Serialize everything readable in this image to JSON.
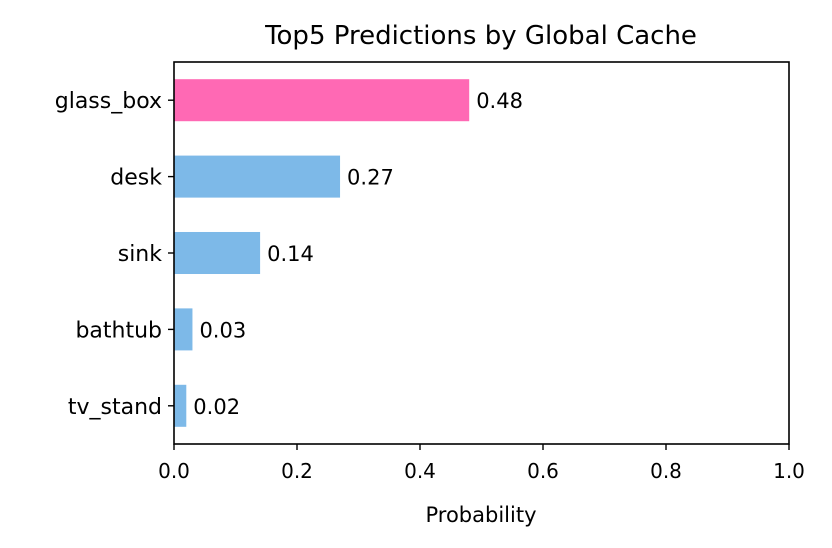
{
  "chart_data": {
    "type": "bar",
    "orientation": "horizontal",
    "title": "Top5 Predictions by Global Cache",
    "xlabel": "Probability",
    "ylabel": "",
    "categories": [
      "glass_box",
      "desk",
      "sink",
      "bathtub",
      "tv_stand"
    ],
    "values": [
      0.48,
      0.27,
      0.14,
      0.03,
      0.02
    ],
    "value_labels": [
      "0.48",
      "0.27",
      "0.14",
      "0.03",
      "0.02"
    ],
    "xlim": [
      0,
      1.0
    ],
    "xticks": [
      0,
      0.2,
      0.4,
      0.6,
      0.8,
      1.0
    ],
    "xtick_labels": [
      "0.0",
      "0.2",
      "0.4",
      "0.6",
      "0.8",
      "1.0"
    ],
    "grid": false,
    "legend": "none",
    "highlight_color": "#ff69b4",
    "bar_color": "#7db9e8"
  }
}
